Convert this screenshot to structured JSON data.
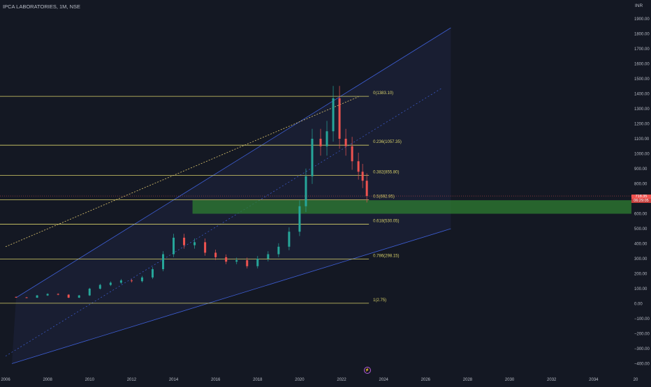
{
  "header": {
    "symbol_title": "IPCA LABORATORIES, 1M, NSE",
    "currency": "INR"
  },
  "colors": {
    "background": "#141823",
    "up": "#26a69a",
    "down": "#ef5350",
    "fib_line": "#d8d16a",
    "channel": "#3e5fd6",
    "zone": "#2e7d32",
    "trend_dotted": "#e0c870"
  },
  "chart_data": {
    "type": "candlestick",
    "title": "IPCA LABORATORIES, 1M, NSE",
    "y_unit": "INR",
    "ylim": [
      -430,
      1960
    ],
    "xlim": [
      2006.0,
      2036.0
    ],
    "y_ticks": [
      "1900.00",
      "1800.00",
      "1700.00",
      "1600.00",
      "1500.00",
      "1400.00",
      "1300.00",
      "1200.00",
      "1100.00",
      "1000.00",
      "900.00",
      "800.00",
      "700.00",
      "600.00",
      "500.00",
      "400.00",
      "300.00",
      "200.00",
      "100.00",
      "0.00",
      "−100.00",
      "−200.00",
      "−300.00",
      "−400.00"
    ],
    "x_ticks": [
      "2006",
      "2008",
      "2010",
      "2012",
      "2014",
      "2016",
      "2018",
      "2020",
      "2022",
      "2024",
      "2026",
      "2028",
      "2030",
      "2032",
      "2034",
      "20"
    ],
    "fib_levels": [
      {
        "label": "0(1383.10)",
        "value": 1383.1
      },
      {
        "label": "0.236(1057.35)",
        "value": 1057.35
      },
      {
        "label": "0.382(855.80)",
        "value": 855.8
      },
      {
        "label": "0.5(692.95)",
        "value": 692.95
      },
      {
        "label": "0.618(530.05)",
        "value": 530.05
      },
      {
        "label": "0.786(298.15)",
        "value": 298.15
      },
      {
        "label": "1(2.75)",
        "value": 2.75
      }
    ],
    "fib_x_start": 2006.0,
    "fib_x_end": 2023.3,
    "demand_zone": {
      "x_start": 2014.9,
      "x_end": 2036.0,
      "y_low": 600,
      "y_high": 690
    },
    "channel": {
      "lower": [
        [
          2006.5,
          -30
        ],
        [
          2027.2,
          500
        ]
      ],
      "upper": [
        [
          2006.5,
          40
        ],
        [
          2027.2,
          1840
        ]
      ],
      "start_y_lower": -400
    },
    "trend_line_dotted": [
      [
        2006.0,
        380
      ],
      [
        2022.8,
        1380
      ]
    ],
    "mid_dotted": [
      [
        2006.0,
        -350
      ],
      [
        2026.8,
        1440
      ]
    ],
    "last_price": "718.35",
    "countdown": "06:29:05",
    "series": [
      {
        "x": 2006.0,
        "close": 45
      },
      {
        "x": 2006.5,
        "close": 42
      },
      {
        "x": 2007.0,
        "close": 40
      },
      {
        "x": 2007.5,
        "close": 55
      },
      {
        "x": 2008.0,
        "close": 65
      },
      {
        "x": 2008.5,
        "close": 60
      },
      {
        "x": 2009.0,
        "close": 40
      },
      {
        "x": 2009.5,
        "close": 55
      },
      {
        "x": 2010.0,
        "close": 100
      },
      {
        "x": 2010.5,
        "close": 125
      },
      {
        "x": 2011.0,
        "close": 140
      },
      {
        "x": 2011.5,
        "close": 155
      },
      {
        "x": 2012.0,
        "close": 150
      },
      {
        "x": 2012.5,
        "close": 175
      },
      {
        "x": 2013.0,
        "close": 230
      },
      {
        "x": 2013.5,
        "close": 330
      },
      {
        "x": 2014.0,
        "close": 440
      },
      {
        "x": 2014.5,
        "close": 390
      },
      {
        "x": 2015.0,
        "close": 410
      },
      {
        "x": 2015.5,
        "close": 340
      },
      {
        "x": 2016.0,
        "close": 310
      },
      {
        "x": 2016.5,
        "close": 280
      },
      {
        "x": 2017.0,
        "close": 290
      },
      {
        "x": 2017.5,
        "close": 250
      },
      {
        "x": 2018.0,
        "close": 300
      },
      {
        "x": 2018.5,
        "close": 330
      },
      {
        "x": 2019.0,
        "close": 380
      },
      {
        "x": 2019.5,
        "close": 480
      },
      {
        "x": 2020.0,
        "close": 650
      },
      {
        "x": 2020.3,
        "close": 850
      },
      {
        "x": 2020.6,
        "close": 1100
      },
      {
        "x": 2021.0,
        "close": 1050
      },
      {
        "x": 2021.3,
        "close": 1150
      },
      {
        "x": 2021.6,
        "close": 1370
      },
      {
        "x": 2021.9,
        "close": 1100
      },
      {
        "x": 2022.2,
        "close": 1050
      },
      {
        "x": 2022.5,
        "close": 950
      },
      {
        "x": 2022.8,
        "close": 880
      },
      {
        "x": 2023.0,
        "close": 820
      },
      {
        "x": 2023.2,
        "close": 718
      }
    ]
  }
}
